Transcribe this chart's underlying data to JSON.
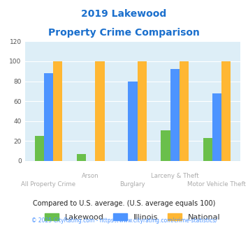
{
  "title_line1": "2019 Lakewood",
  "title_line2": "Property Crime Comparison",
  "title_color": "#1a6fcd",
  "lakewood": [
    25,
    7,
    0,
    31,
    23
  ],
  "illinois": [
    88,
    0,
    80,
    92,
    68
  ],
  "national": [
    100,
    100,
    100,
    100,
    100
  ],
  "lakewood_color": "#6abf4b",
  "illinois_color": "#4d94ff",
  "national_color": "#ffb733",
  "ylim": [
    0,
    120
  ],
  "yticks": [
    0,
    20,
    40,
    60,
    80,
    100,
    120
  ],
  "bar_width": 0.22,
  "background_color": "#ddeef7",
  "footnote1": "Compared to U.S. average. (U.S. average equals 100)",
  "footnote2": "© 2025 CityRating.com - https://www.cityrating.com/crime-statistics/",
  "footnote1_color": "#222222",
  "footnote2_color": "#4d94ff",
  "label_color": "#aaaaaa"
}
